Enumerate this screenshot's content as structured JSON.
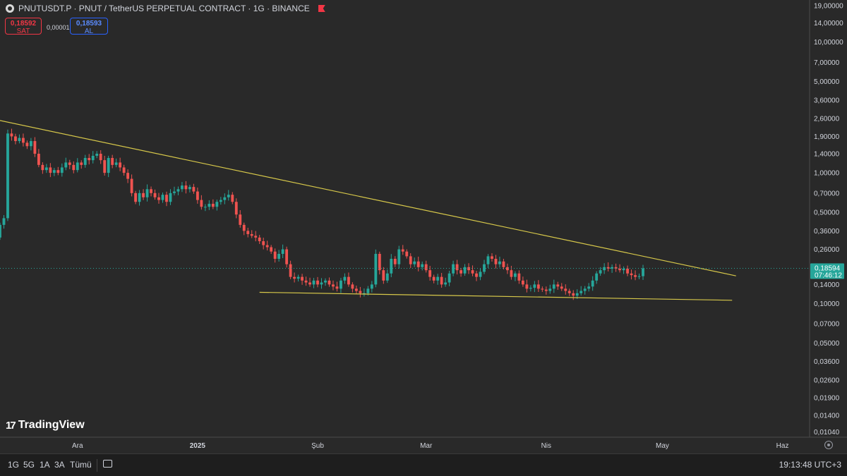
{
  "header": {
    "title": "PNUTUSDT.P · PNUT / TetherUS PERPETUAL CONTRACT · 1G · BINANCE",
    "sell_price": "0,18592",
    "sell_label": "SAT",
    "spread": "0,00001",
    "buy_price": "0,18593",
    "buy_label": "AL"
  },
  "branding": {
    "logo_text": "TradingView"
  },
  "toolbar": {
    "timeframes": [
      "1G",
      "5G",
      "1A",
      "3A",
      "Tümü"
    ],
    "clock": "19:13:48 UTC+3"
  },
  "colors": {
    "up": "#26a69a",
    "down": "#ef5350",
    "trendline": "#d7c84a",
    "background": "#292929"
  },
  "chart_data": {
    "type": "candlestick",
    "y_scale": "log",
    "ylim": [
      0.0095,
      21
    ],
    "y_ticks": [
      {
        "v": 19,
        "label": "19,00000"
      },
      {
        "v": 14,
        "label": "14,00000"
      },
      {
        "v": 10,
        "label": "10,00000"
      },
      {
        "v": 7,
        "label": "7,00000"
      },
      {
        "v": 5,
        "label": "5,00000"
      },
      {
        "v": 3.6,
        "label": "3,60000"
      },
      {
        "v": 2.6,
        "label": "2,60000"
      },
      {
        "v": 1.9,
        "label": "1,90000"
      },
      {
        "v": 1.4,
        "label": "1,40000"
      },
      {
        "v": 1.0,
        "label": "1,00000"
      },
      {
        "v": 0.7,
        "label": "0,70000"
      },
      {
        "v": 0.5,
        "label": "0,50000"
      },
      {
        "v": 0.36,
        "label": "0,36000"
      },
      {
        "v": 0.26,
        "label": "0,26000"
      },
      {
        "v": 0.14,
        "label": "0,14000"
      },
      {
        "v": 0.1,
        "label": "0,10000"
      },
      {
        "v": 0.07,
        "label": "0,07000"
      },
      {
        "v": 0.05,
        "label": "0,05000"
      },
      {
        "v": 0.036,
        "label": "0,03600"
      },
      {
        "v": 0.026,
        "label": "0,02600"
      },
      {
        "v": 0.019,
        "label": "0,01900"
      },
      {
        "v": 0.014,
        "label": "0,01400"
      },
      {
        "v": 0.0104,
        "label": "0,01040"
      }
    ],
    "x_start": "2024-11-11",
    "x_end": "2025-06-08",
    "x_ticks": [
      {
        "date": "2024-12-01",
        "label": "Ara"
      },
      {
        "date": "2025-01-01",
        "label": "2025"
      },
      {
        "date": "2025-02-01",
        "label": "Şub"
      },
      {
        "date": "2025-03-01",
        "label": "Mar"
      },
      {
        "date": "2025-04-01",
        "label": "Nis"
      },
      {
        "date": "2025-05-01",
        "label": "May"
      },
      {
        "date": "2025-06-01",
        "label": "Haz"
      }
    ],
    "current_price": {
      "value": 0.18594,
      "label": "0,18594",
      "countdown": "07:46:12"
    },
    "first_candle_date": "2024-11-11",
    "closes": [
      0.4,
      0.45,
      2.0,
      1.9,
      1.75,
      1.85,
      1.7,
      1.6,
      1.75,
      1.4,
      1.15,
      1.05,
      1.1,
      1.0,
      1.05,
      1.0,
      1.1,
      1.2,
      1.15,
      1.05,
      1.2,
      1.15,
      1.3,
      1.25,
      1.35,
      1.4,
      1.25,
      1.0,
      1.3,
      1.15,
      1.2,
      1.1,
      1.0,
      0.9,
      0.7,
      0.6,
      0.7,
      0.65,
      0.75,
      0.7,
      0.65,
      0.62,
      0.68,
      0.6,
      0.7,
      0.72,
      0.75,
      0.8,
      0.75,
      0.78,
      0.72,
      0.62,
      0.55,
      0.55,
      0.58,
      0.55,
      0.6,
      0.62,
      0.65,
      0.68,
      0.6,
      0.48,
      0.4,
      0.36,
      0.34,
      0.33,
      0.32,
      0.3,
      0.28,
      0.27,
      0.25,
      0.22,
      0.24,
      0.26,
      0.2,
      0.16,
      0.155,
      0.16,
      0.15,
      0.145,
      0.14,
      0.15,
      0.14,
      0.145,
      0.15,
      0.14,
      0.135,
      0.13,
      0.15,
      0.16,
      0.14,
      0.13,
      0.125,
      0.12,
      0.12,
      0.13,
      0.14,
      0.24,
      0.18,
      0.15,
      0.17,
      0.22,
      0.2,
      0.26,
      0.25,
      0.23,
      0.2,
      0.21,
      0.19,
      0.2,
      0.18,
      0.16,
      0.15,
      0.16,
      0.14,
      0.145,
      0.17,
      0.2,
      0.18,
      0.17,
      0.19,
      0.18,
      0.17,
      0.16,
      0.175,
      0.2,
      0.23,
      0.22,
      0.2,
      0.21,
      0.19,
      0.18,
      0.16,
      0.17,
      0.15,
      0.14,
      0.13,
      0.132,
      0.14,
      0.13,
      0.128,
      0.125,
      0.13,
      0.14,
      0.135,
      0.13,
      0.125,
      0.12,
      0.115,
      0.12,
      0.125,
      0.13,
      0.135,
      0.15,
      0.17,
      0.18,
      0.19,
      0.185,
      0.19,
      0.185,
      0.18,
      0.185,
      0.17,
      0.165,
      0.16,
      0.162,
      0.186
    ],
    "trendlines": [
      {
        "name": "resistance",
        "from": {
          "date": "2024-11-03",
          "value": 2.82
        },
        "to": {
          "date": "2025-05-20",
          "value": 0.163
        }
      },
      {
        "name": "support",
        "from": {
          "date": "2025-01-17",
          "value": 0.122
        },
        "to": {
          "date": "2025-05-19",
          "value": 0.106
        }
      }
    ]
  }
}
